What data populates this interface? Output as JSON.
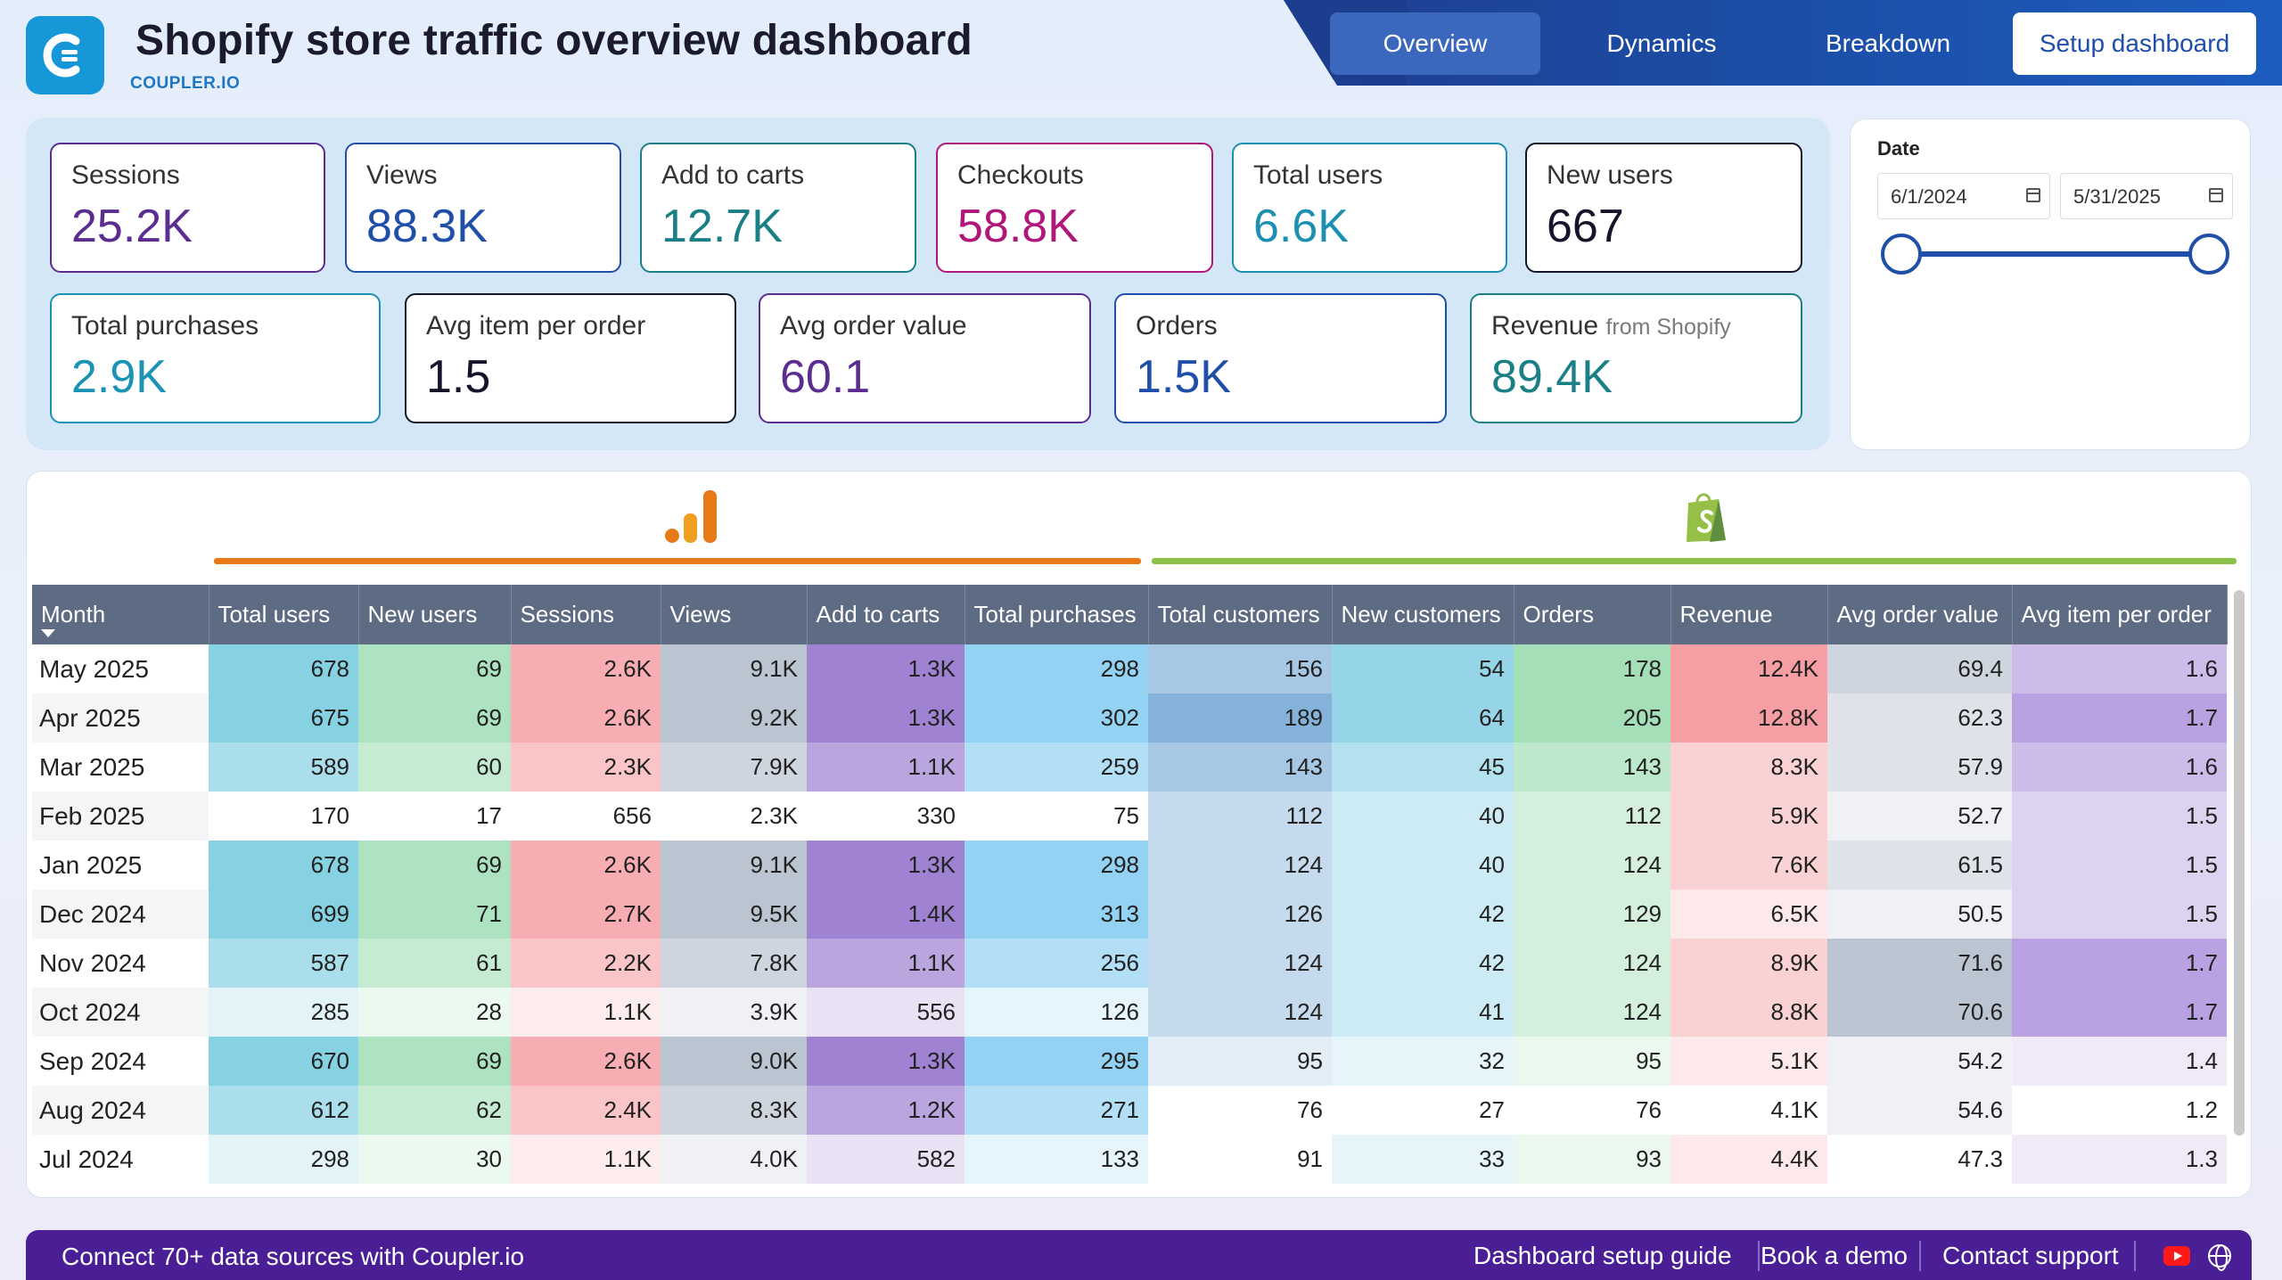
{
  "header": {
    "title": "Shopify store traffic overview dashboard",
    "subtitle": "COUPLER.IO"
  },
  "nav": {
    "overview": "Overview",
    "dynamics": "Dynamics",
    "breakdown": "Breakdown",
    "setup": "Setup dashboard"
  },
  "kpis": {
    "sessions": {
      "label": "Sessions",
      "value": "25.2K",
      "color": "#5b2d91"
    },
    "views": {
      "label": "Views",
      "value": "88.3K",
      "color": "#1f4fa8"
    },
    "add_to_carts": {
      "label": "Add to carts",
      "value": "12.7K",
      "color": "#1b7f86"
    },
    "checkouts": {
      "label": "Checkouts",
      "value": "58.8K",
      "color": "#b0177b"
    },
    "total_users": {
      "label": "Total users",
      "value": "6.6K",
      "color": "#1d8fb0"
    },
    "new_users": {
      "label": "New users",
      "value": "667",
      "color": "#14142b"
    },
    "total_purchases": {
      "label": "Total purchases",
      "value": "2.9K",
      "color": "#1a93b4"
    },
    "avg_item": {
      "label": "Avg item per order",
      "value": "1.5",
      "color": "#14142b"
    },
    "avg_order": {
      "label": "Avg order value",
      "value": "60.1",
      "color": "#5b2d91"
    },
    "orders": {
      "label": "Orders",
      "value": "1.5K",
      "color": "#1f4fa8"
    },
    "revenue": {
      "label": "Revenue",
      "label_suffix": "from Shopify",
      "value": "89.4K",
      "color": "#1b7f86"
    }
  },
  "date_filter": {
    "label": "Date",
    "start": "6/1/2024",
    "end": "5/31/2025"
  },
  "table": {
    "columns": [
      "Month",
      "Total users",
      "New users",
      "Sessions",
      "Views",
      "Add to carts",
      "Total purchases",
      "Total customers",
      "New customers",
      "Orders",
      "Revenue",
      "Avg order value",
      "Avg item per order"
    ],
    "rows": [
      [
        "May 2025",
        "678",
        "69",
        "2.6K",
        "9.1K",
        "1.3K",
        "298",
        "156",
        "54",
        "178",
        "12.4K",
        "69.4",
        "1.6"
      ],
      [
        "Apr 2025",
        "675",
        "69",
        "2.6K",
        "9.2K",
        "1.3K",
        "302",
        "189",
        "64",
        "205",
        "12.8K",
        "62.3",
        "1.7"
      ],
      [
        "Mar 2025",
        "589",
        "60",
        "2.3K",
        "7.9K",
        "1.1K",
        "259",
        "143",
        "45",
        "143",
        "8.3K",
        "57.9",
        "1.6"
      ],
      [
        "Feb 2025",
        "170",
        "17",
        "656",
        "2.3K",
        "330",
        "75",
        "112",
        "40",
        "112",
        "5.9K",
        "52.7",
        "1.5"
      ],
      [
        "Jan 2025",
        "678",
        "69",
        "2.6K",
        "9.1K",
        "1.3K",
        "298",
        "124",
        "40",
        "124",
        "7.6K",
        "61.5",
        "1.5"
      ],
      [
        "Dec 2024",
        "699",
        "71",
        "2.7K",
        "9.5K",
        "1.4K",
        "313",
        "126",
        "42",
        "129",
        "6.5K",
        "50.5",
        "1.5"
      ],
      [
        "Nov 2024",
        "587",
        "61",
        "2.2K",
        "7.8K",
        "1.1K",
        "256",
        "124",
        "42",
        "124",
        "8.9K",
        "71.6",
        "1.7"
      ],
      [
        "Oct 2024",
        "285",
        "28",
        "1.1K",
        "3.9K",
        "556",
        "126",
        "124",
        "41",
        "124",
        "8.8K",
        "70.6",
        "1.7"
      ],
      [
        "Sep 2024",
        "670",
        "69",
        "2.6K",
        "9.0K",
        "1.3K",
        "295",
        "95",
        "32",
        "95",
        "5.1K",
        "54.2",
        "1.4"
      ],
      [
        "Aug 2024",
        "612",
        "62",
        "2.4K",
        "8.3K",
        "1.2K",
        "271",
        "76",
        "27",
        "76",
        "4.1K",
        "54.6",
        "1.2"
      ],
      [
        "Jul 2024",
        "298",
        "30",
        "1.1K",
        "4.0K",
        "582",
        "133",
        "91",
        "33",
        "93",
        "4.4K",
        "47.3",
        "1.3"
      ]
    ],
    "shades": [
      [
        4,
        4,
        4,
        4,
        4,
        4,
        3,
        4,
        4,
        4,
        3,
        3
      ],
      [
        4,
        4,
        4,
        4,
        4,
        4,
        4,
        4,
        4,
        4,
        2,
        4
      ],
      [
        3,
        3,
        3,
        3,
        3,
        3,
        3,
        3,
        3,
        2,
        2,
        3
      ],
      [
        0,
        0,
        0,
        0,
        0,
        0,
        2,
        2,
        2,
        2,
        1,
        2
      ],
      [
        4,
        4,
        4,
        4,
        4,
        4,
        2,
        2,
        2,
        2,
        2,
        2
      ],
      [
        4,
        4,
        4,
        4,
        4,
        4,
        2,
        2,
        2,
        1,
        1,
        2
      ],
      [
        3,
        3,
        3,
        3,
        3,
        3,
        2,
        2,
        2,
        2,
        4,
        4
      ],
      [
        1,
        1,
        1,
        1,
        1,
        1,
        2,
        2,
        2,
        2,
        4,
        4
      ],
      [
        4,
        4,
        4,
        4,
        4,
        4,
        1,
        1,
        1,
        1,
        1,
        1
      ],
      [
        3,
        3,
        3,
        3,
        3,
        3,
        0,
        0,
        0,
        0,
        1,
        0
      ],
      [
        1,
        1,
        1,
        1,
        1,
        1,
        0,
        1,
        1,
        1,
        0,
        1
      ]
    ],
    "column_colors": [
      "#80cfe0",
      "#a9e2bd",
      "#f7a9ad",
      "#b7c1cf",
      "#9b7bd0",
      "#8ed0f2",
      "#7eaed8",
      "#8fd3e6",
      "#9fddb3",
      "#f49aa0",
      "#b7c1cf",
      "#b59ce0"
    ]
  },
  "footer": {
    "left": "Connect 70+ data sources with Coupler.io",
    "guide": "Dashboard setup guide",
    "demo": "Book a demo",
    "support": "Contact support"
  }
}
